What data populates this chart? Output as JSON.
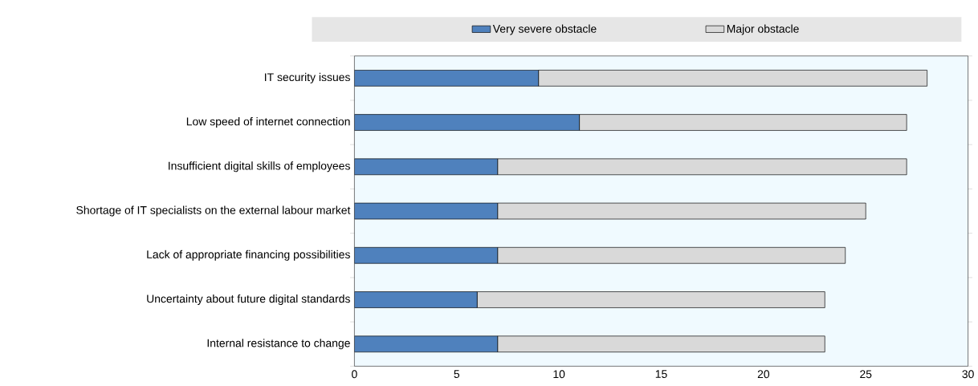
{
  "chart_data": {
    "type": "bar",
    "orientation": "horizontal",
    "stacked": true,
    "categories": [
      "IT security issues",
      "Low speed of internet connection",
      "Insufficient digital skills of employees",
      "Shortage of IT specialists on the external labour market",
      "Lack of appropriate financing possibilities",
      "Uncertainty about future digital standards",
      "Internal resistance to change"
    ],
    "series": [
      {
        "name": "Very severe obstacle",
        "color": "#4f81bd",
        "values": [
          9,
          11,
          7,
          7,
          7,
          6,
          7
        ]
      },
      {
        "name": "Major obstacle",
        "color": "#d9d9d9",
        "values": [
          19,
          16,
          20,
          18,
          17,
          17,
          16
        ]
      }
    ],
    "xlim": [
      0,
      30
    ],
    "xticks": [
      0,
      5,
      10,
      15,
      20,
      25,
      30
    ],
    "legend": "top",
    "grid": false
  }
}
